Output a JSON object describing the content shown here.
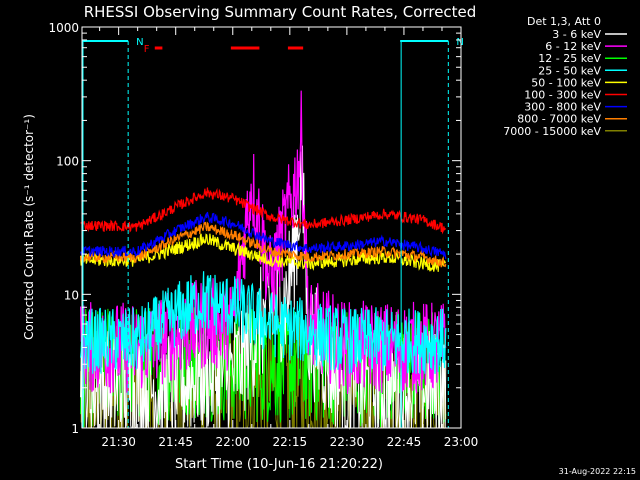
{
  "chart_data": {
    "type": "line",
    "title": "RHESSI Observing Summary Count Rates, Corrected",
    "xlabel": "Start Time (10-Jun-16 21:20:22)",
    "ylabel": "Corrected Count Rate (s⁻¹ detector⁻¹)",
    "y_scale": "log",
    "ylim": [
      1,
      1000
    ],
    "xlim": [
      "21:20:22",
      "23:00:00"
    ],
    "x_ticks": [
      "21:30",
      "21:45",
      "22:00",
      "22:15",
      "22:30",
      "22:45",
      "23:00"
    ],
    "y_ticks": [
      "1",
      "10",
      "100",
      "1000"
    ],
    "legend_header": "Det 1,3, Att 0",
    "legend_position": "right",
    "footer": "31-Aug-2022 22:15",
    "annotations": [
      {
        "label": "N",
        "color": "#00ffff",
        "kind": "night",
        "x_start": "21:20:22",
        "x_end": "21:32:30"
      },
      {
        "label": "N",
        "color": "#00ffff",
        "kind": "night",
        "x_start": "22:44:00",
        "x_end": "22:56:40"
      },
      {
        "label": "F",
        "color": "#ff0000",
        "kind": "flare",
        "x_start": "21:39:30",
        "x_end": "21:41:30"
      },
      {
        "label": "",
        "color": "#ff0000",
        "kind": "flare",
        "x_start": "21:59:30",
        "x_end": "22:07:00"
      },
      {
        "label": "",
        "color": "#ff0000",
        "kind": "flare",
        "x_start": "22:14:30",
        "x_end": "22:18:30"
      }
    ],
    "series": [
      {
        "name": "3 - 6 keV",
        "color": "#ffffff",
        "x": [
          "21:20",
          "21:35",
          "21:45",
          "21:50",
          "22:00",
          "22:10",
          "22:14",
          "22:17",
          "22:18",
          "22:20",
          "22:30",
          "22:45",
          "22:56"
        ],
        "y": [
          2,
          2,
          2,
          2.5,
          2.5,
          8,
          9,
          30,
          80,
          5,
          2,
          2,
          2
        ]
      },
      {
        "name": "6 - 12 keV",
        "color": "#ff00ff",
        "x": [
          "21:20",
          "21:35",
          "21:45",
          "21:52",
          "22:00",
          "22:05",
          "22:10",
          "22:17",
          "22:18",
          "22:20",
          "22:30",
          "22:45",
          "22:56"
        ],
        "y": [
          4,
          4,
          5,
          6,
          6,
          70,
          12,
          80,
          150,
          6,
          4,
          4,
          4
        ]
      },
      {
        "name": "12 - 25 keV",
        "color": "#00ff00",
        "x": [
          "21:20",
          "21:40",
          "21:52",
          "22:00",
          "22:20",
          "22:45",
          "22:56"
        ],
        "y": [
          2.8,
          3,
          3.2,
          3,
          3,
          2.8,
          2.8
        ]
      },
      {
        "name": "25 - 50 keV",
        "color": "#00ffff",
        "x": [
          "21:20",
          "21:35",
          "21:45",
          "21:52",
          "22:00",
          "22:10",
          "22:30",
          "22:45",
          "22:56"
        ],
        "y": [
          4.5,
          4.5,
          7,
          9,
          8,
          6,
          4.5,
          4.5,
          4.5
        ]
      },
      {
        "name": "50 - 100 keV",
        "color": "#ffff00",
        "x": [
          "21:20",
          "21:35",
          "21:45",
          "21:53",
          "22:00",
          "22:10",
          "22:20",
          "22:30",
          "22:40",
          "22:50",
          "22:56"
        ],
        "y": [
          18,
          18,
          22,
          26,
          22,
          18,
          17,
          18,
          19,
          17,
          16
        ]
      },
      {
        "name": "100 - 300 keV",
        "color": "#ff0000",
        "x": [
          "21:20",
          "21:35",
          "21:45",
          "21:53",
          "22:00",
          "22:10",
          "22:20",
          "22:30",
          "22:40",
          "22:50",
          "22:56"
        ],
        "y": [
          33,
          32,
          45,
          58,
          52,
          38,
          33,
          36,
          40,
          36,
          31
        ]
      },
      {
        "name": "300 - 800 keV",
        "color": "#0000ff",
        "x": [
          "21:20",
          "21:35",
          "21:45",
          "21:53",
          "22:00",
          "22:10",
          "22:20",
          "22:30",
          "22:40",
          "22:50",
          "22:56"
        ],
        "y": [
          21,
          21,
          30,
          38,
          34,
          25,
          22,
          23,
          25,
          22,
          20
        ]
      },
      {
        "name": "800 - 7000 keV",
        "color": "#ff7f00",
        "x": [
          "21:20",
          "21:35",
          "21:45",
          "21:53",
          "22:00",
          "22:10",
          "22:20",
          "22:30",
          "22:40",
          "22:50",
          "22:56"
        ],
        "y": [
          19,
          19,
          26,
          32,
          28,
          21,
          19,
          20,
          21,
          19,
          17
        ]
      },
      {
        "name": "7000 - 15000 keV",
        "color": "#808000",
        "x": [
          "21:20",
          "21:40",
          "21:52",
          "22:00",
          "22:20",
          "22:45",
          "22:56"
        ],
        "y": [
          1.8,
          2,
          2.5,
          2,
          2,
          1.8,
          1.8
        ]
      }
    ]
  }
}
